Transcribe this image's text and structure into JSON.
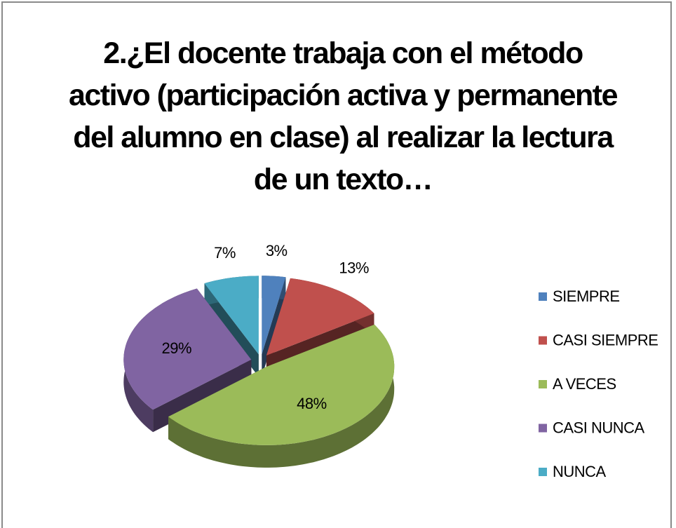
{
  "chart_data": {
    "type": "pie",
    "title": "2.¿El docente trabaja con el método activo (participación activa y permanente del alumno en clase) al realizar la lectura de un texto…",
    "categories": [
      "SIEMPRE",
      "CASI SIEMPRE",
      "A VECES",
      "CASI NUNCA",
      "NUNCA"
    ],
    "values": [
      3,
      13,
      48,
      29,
      7
    ],
    "value_labels": [
      "3%",
      "13%",
      "48%",
      "29%",
      "7%"
    ],
    "colors": [
      "#4f81bd",
      "#c0504d",
      "#9bbb59",
      "#8064a2",
      "#4bacc6"
    ],
    "legend": "right"
  }
}
